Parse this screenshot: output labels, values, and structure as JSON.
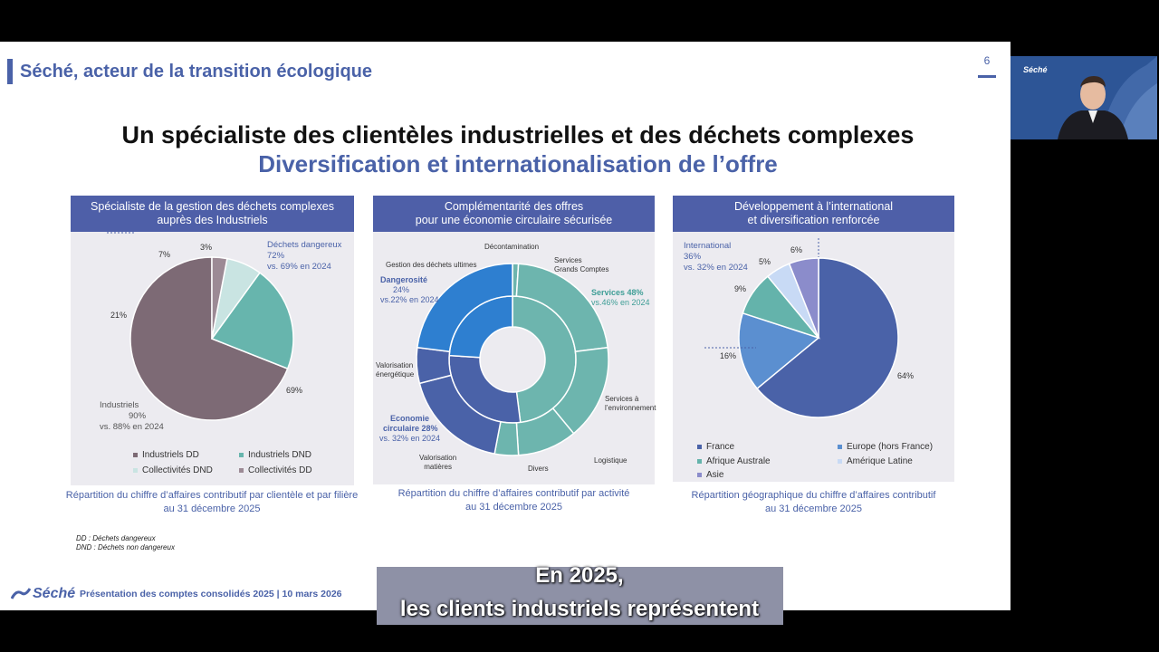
{
  "slide": {
    "header": "Séché, acteur de la transition écologique",
    "page_number": "6",
    "title": "Un spécialiste des clientèles industrielles et des déchets complexes",
    "subtitle": "Diversification et internationalisation de l’offre",
    "footnotes": [
      "DD : Déchets dangereux",
      "DND : Déchets non dangereux"
    ],
    "footer_logo": "Séché",
    "footer_text": "Présentation des comptes consolidés 2025 | 10 mars 2026"
  },
  "panels": [
    {
      "header_lines": [
        "Spécialiste de la gestion des déchets complexes",
        "auprès des Industriels"
      ],
      "caption_lines": [
        "Répartition du chiffre d’affaires contributif par clientèle et par filière",
        "au 31 décembre 2025"
      ],
      "callouts": {
        "dangerous": [
          "Déchets dangereux",
          "72%",
          "vs. 69% en 2024"
        ],
        "industrials": [
          "Industriels",
          "90%",
          "vs. 88% en 2024"
        ]
      },
      "legend": [
        "Industriels DD",
        "Industriels DND",
        "Collectivités DND",
        "Collectivités DD"
      ]
    },
    {
      "header_lines": [
        "Complémentarité des offres",
        "pour une économie circulaire sécurisée"
      ],
      "caption_lines": [
        "Répartition du chiffre d’affaires contributif par activité",
        "au 31 décembre 2025"
      ],
      "labels": {
        "decontamination": "Décontamination",
        "gestion": "Gestion des déchets ultimes",
        "services_gc": [
          "Services",
          "Grands Comptes"
        ],
        "services_env": [
          "Services à",
          "l’environnement"
        ],
        "logistique": "Logistique",
        "divers": "Divers",
        "valo_matieres": [
          "Valorisation",
          "matières"
        ],
        "valo_energetique": [
          "Valorisation",
          "énergétique"
        ]
      },
      "callouts": {
        "dangerosite": [
          "Dangerosité",
          "24%",
          "vs.22% en 2024"
        ],
        "services": [
          "Services 48%",
          "vs.46% en 2024"
        ],
        "economie": [
          "Economie",
          "circulaire 28%",
          "vs. 32% en 2024"
        ]
      }
    },
    {
      "header_lines": [
        "Développement à l’international",
        "et diversification renforcée"
      ],
      "caption_lines": [
        "Répartition géographique du chiffre d’affaires contributif",
        "au 31 décembre 2025"
      ],
      "callouts": {
        "international": [
          "International",
          "36%",
          "vs. 32% en 2024"
        ]
      },
      "legend": [
        "France",
        "Europe (hors France)",
        "Afrique Australe",
        "Amérique Latine",
        "Asie"
      ]
    }
  ],
  "chart_data": [
    {
      "type": "pie",
      "categories": [
        "Industriels DD",
        "Industriels DND",
        "Collectivités DND",
        "Collectivités DD"
      ],
      "values": [
        69,
        21,
        7,
        3
      ],
      "colors": [
        "#7d6a75",
        "#67b5ad",
        "#c9e4e2",
        "#9c8a95"
      ],
      "value_labels": [
        "69%",
        "21%",
        "7%",
        "3%"
      ]
    },
    {
      "type": "pie",
      "series": [
        {
          "name": "Dangerosité / Services / Economie circulaire",
          "categories": [
            "Services",
            "Economie circulaire",
            "Dangerosité"
          ],
          "values": [
            48,
            28,
            24
          ]
        },
        {
          "categories": [
            "Décontamination",
            "Services Grands Comptes",
            "Services à l’environnement",
            "Logistique",
            "Divers",
            "Valorisation matières",
            "Valorisation énergétique",
            "Gestion des déchets ultimes"
          ],
          "values": [
            1,
            22,
            16,
            10,
            4,
            18,
            6,
            23
          ]
        }
      ],
      "colors": [
        "#6db5ae",
        "#4a62a8",
        "#2e7fd0"
      ]
    },
    {
      "type": "pie",
      "categories": [
        "France",
        "Europe (hors France)",
        "Afrique Australe",
        "Amérique Latine",
        "Asie"
      ],
      "values": [
        64,
        16,
        9,
        5,
        6
      ],
      "colors": [
        "#4a62a8",
        "#5b8fd0",
        "#64b3ab",
        "#c8daf5",
        "#8b8ccb"
      ],
      "value_labels": [
        "64%",
        "16%",
        "9%",
        "5%",
        "6%"
      ]
    }
  ],
  "subtitles": [
    "En 2025,",
    "les clients industriels représentent"
  ],
  "webcam": {
    "logo": "Séché"
  }
}
